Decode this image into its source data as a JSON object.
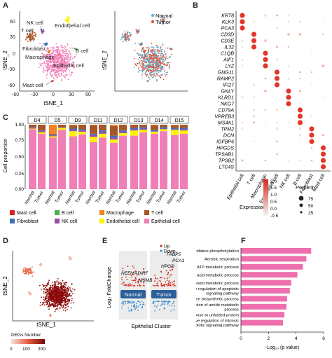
{
  "panel_labels": {
    "a": "A",
    "b": "B",
    "c": "C",
    "d": "D",
    "e": "E",
    "f": "F"
  },
  "panel_a": {
    "ylabel": "tSNE_2",
    "xlabel": "tSNE_1",
    "yticks": [
      "60",
      "30",
      "0",
      "-30",
      "-60"
    ],
    "xticks": [
      "-60",
      "-30",
      "0",
      "30",
      "60"
    ],
    "cluster_labels": {
      "nk": "NK cell",
      "t": "T cell",
      "endo": "Endothelial cell",
      "fibro": "Fibroblast",
      "b": "B cell",
      "macro": "Macrophage",
      "epi": "Epithelial cell",
      "mast": "Mast cell"
    },
    "legend": [
      {
        "name": "Normal",
        "color": "#55b7d6"
      },
      {
        "name": "Tumor",
        "color": "#e1553d"
      }
    ]
  },
  "panel_b": {
    "genes": [
      "KRT8",
      "KLK3",
      "PCA3",
      "CD3D",
      "CD3E",
      "IL32",
      "C1QB",
      "AIF1",
      "LYZ",
      "GNG11",
      "RAMP2",
      "IFI27",
      "GNLY",
      "KLRD1",
      "NKG7",
      "CD79A",
      "VPREB3",
      "MS4A1",
      "TPM2",
      "DCN",
      "IGFBP6",
      "HPGDS",
      "TPSAB1",
      "TPSB2",
      "LTC4S"
    ],
    "celltypes": [
      "Epithelial cell",
      "T cell",
      "Macrophage",
      "Endothelial cell",
      "NK cell",
      "B cell",
      "Fibroblast",
      "Mast cell"
    ],
    "expression_legend": {
      "title": "Expression",
      "ticks": [
        "2.0",
        "1.5",
        "1.0",
        "0.5",
        "0.0",
        "-0.5"
      ]
    },
    "percent_legend": {
      "title": "Percent",
      "values": [
        "75",
        "50",
        "25"
      ]
    }
  },
  "panel_c": {
    "ylabel": "Cell proportion",
    "yticks": [
      "0.00",
      "0.25",
      "0.50",
      "0.75",
      "1.00"
    ],
    "donors": [
      "D4",
      "D5",
      "D9",
      "D11",
      "D12",
      "D13",
      "D14",
      "D15"
    ],
    "groups": [
      "Normal",
      "Tumor"
    ],
    "legend": [
      {
        "name": "Mast cell",
        "color": "#d7261e"
      },
      {
        "name": "B cell",
        "color": "#4daf4a"
      },
      {
        "name": "Macrophage",
        "color": "#f58220"
      },
      {
        "name": "T cell",
        "color": "#a65628"
      },
      {
        "name": "Fibroblast",
        "color": "#3f72b5"
      },
      {
        "name": "NK cell",
        "color": "#984ea3"
      },
      {
        "name": "Endothelial cell",
        "color": "#fff200"
      },
      {
        "name": "Epithelial cell",
        "color": "#f07fb8"
      }
    ]
  },
  "panel_d": {
    "ylabel": "tSNE_2",
    "xlabel": "tSNE_1",
    "legend_title": "DEGs Number",
    "legend_ticks": [
      "0",
      "100",
      "200"
    ]
  },
  "panel_e": {
    "ylabel": "Log₂ FoldChange",
    "xlabel": "Epithelial Cluster",
    "groups": [
      "Normal",
      "Tumor"
    ],
    "legend": [
      {
        "name": "Up",
        "color": "#d7261e"
      },
      {
        "name": "Down",
        "color": "#3a8fd0"
      }
    ],
    "gene_labels": [
      "NEFH",
      "ADIRF",
      "MSMB",
      "FABP5",
      "PCA3",
      "HPGD"
    ]
  },
  "chart_data": {
    "type": "bar",
    "categories": [
      "Oxidative phosphorylation",
      "Aerobic respiration",
      "ATP metabolic process",
      "Fatty acid metabolic process",
      "Prostanoid metabolic process",
      "Negative regulation of apoptotic signaling pathway",
      "Polyamine biosynthetic process",
      "Positive regulation of amide metabolic process",
      "Cellular response to unfolded protein",
      "Negative regulation of intrinsic apoptotic signaling pathway"
    ],
    "values": [
      5.1,
      4.75,
      4.5,
      4.1,
      3.65,
      3.55,
      3.35,
      3.3,
      3.15,
      3.05
    ],
    "xlabel": "-Log₁₀ (p value)",
    "xticks": [
      "0",
      "2",
      "4",
      "6"
    ],
    "xlim": [
      0,
      6
    ],
    "color": "#ee6fad"
  }
}
